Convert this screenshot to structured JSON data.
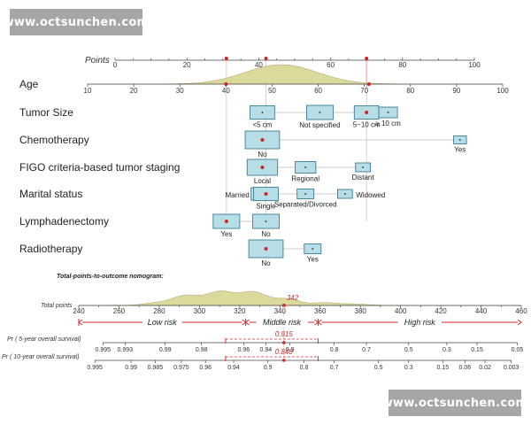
{
  "watermark": "www.octsunchen.com",
  "chart_data": {
    "type": "nomogram",
    "colors": {
      "box_fill": "#b7dde6",
      "box_stroke": "#3b7d96",
      "point": "#d42020",
      "density": "#d8d692",
      "guide": "#e7a3a8",
      "risk": "#cc2a2a",
      "axis": "#444444"
    },
    "points_axis": {
      "label": "Points",
      "min": 0,
      "max": 100,
      "ticks": [
        0,
        20,
        40,
        60,
        80,
        100
      ],
      "markers": [
        31,
        42,
        70
      ]
    },
    "age_axis": {
      "min": 10,
      "max": 100,
      "ticks": [
        10,
        20,
        30,
        40,
        50,
        60,
        70,
        80,
        90,
        100
      ],
      "density_peak": 52,
      "markers": [
        40,
        71
      ]
    },
    "variables": [
      {
        "label": "Age",
        "kind": "axis"
      },
      {
        "label": "Tumor Size",
        "kind": "boxes",
        "levels": [
          {
            "label": "<5 cm",
            "points": 41,
            "size": 0.9
          },
          {
            "label": "Not specified",
            "points": 57,
            "size": 1.0
          },
          {
            "label": "5~10 cm",
            "points": 70,
            "size": 0.9,
            "selected": true
          },
          {
            "label": "≥ 10 cm",
            "points": 76,
            "size": 0.6
          }
        ]
      },
      {
        "label": "Chemotherapy",
        "kind": "boxes",
        "levels": [
          {
            "label": "No",
            "points": 41,
            "size": 1.4,
            "selected": true
          },
          {
            "label": "Yes",
            "points": 96,
            "size": 0.3
          }
        ]
      },
      {
        "label": "FIGO criteria-based tumor staging",
        "kind": "boxes",
        "levels": [
          {
            "label": "Local",
            "points": 41,
            "size": 1.2,
            "selected": true
          },
          {
            "label": "Regional",
            "points": 53,
            "size": 0.7
          },
          {
            "label": "Distant",
            "points": 69,
            "size": 0.4
          }
        ]
      },
      {
        "label": "Marital status",
        "kind": "boxes",
        "levels": [
          {
            "label": "Married",
            "points": 41,
            "size": 0.8
          },
          {
            "label": "Single",
            "points": 42,
            "size": 0.9,
            "selected": true
          },
          {
            "label": "Separated/Divorced",
            "points": 53,
            "size": 0.5
          },
          {
            "label": "Widowed",
            "points": 64,
            "size": 0.4
          }
        ]
      },
      {
        "label": "Lymphadenectomy",
        "kind": "boxes",
        "levels": [
          {
            "label": "Yes",
            "points": 31,
            "size": 1.0,
            "selected": true
          },
          {
            "label": "No",
            "points": 42,
            "size": 1.0
          }
        ]
      },
      {
        "label": "Radiotherapy",
        "kind": "boxes",
        "levels": [
          {
            "label": "No",
            "points": 42,
            "size": 1.4,
            "selected": true
          },
          {
            "label": "Yes",
            "points": 55,
            "size": 0.5
          }
        ]
      }
    ],
    "total_title": "Total-points-to-outcome nomogram:",
    "total_axis": {
      "label": "Total points",
      "min": 240,
      "max": 460,
      "ticks": [
        240,
        260,
        280,
        300,
        320,
        340,
        360,
        380,
        400,
        420,
        440,
        460
      ],
      "selected": 342,
      "selected_label": "342"
    },
    "risk_groups": [
      {
        "label": "Low risk",
        "from": 240,
        "to": 323
      },
      {
        "label": "Middle risk",
        "from": 323,
        "to": 359
      },
      {
        "label": "High risk",
        "from": 359,
        "to": 460
      }
    ],
    "survival_scales": [
      {
        "label": "Pr ( 5-year overall survival)",
        "value_label": "0.915",
        "ticks": [
          {
            "label": "0.995",
            "at": 252
          },
          {
            "label": "0.993",
            "at": 263
          },
          {
            "label": "0.99",
            "at": 283
          },
          {
            "label": "0.98",
            "at": 301
          },
          {
            "label": "0.96",
            "at": 322
          },
          {
            "label": "0.94",
            "at": 333
          },
          {
            "label": "0.9",
            "at": 345
          },
          {
            "label": "0.8",
            "at": 367
          },
          {
            "label": "0.7",
            "at": 383
          },
          {
            "label": "0.5",
            "at": 404
          },
          {
            "label": "0.3",
            "at": 423
          },
          {
            "label": "0.15",
            "at": 438
          },
          {
            "label": "0.05",
            "at": 458
          }
        ]
      },
      {
        "label": "Pr ( 10-year overall survival)",
        "value_label": "0.848",
        "ticks": [
          {
            "label": "0.995",
            "at": 248
          },
          {
            "label": "0.99",
            "at": 266
          },
          {
            "label": "0.985",
            "at": 278
          },
          {
            "label": "0.975",
            "at": 291
          },
          {
            "label": "0.96",
            "at": 303
          },
          {
            "label": "0.94",
            "at": 317
          },
          {
            "label": "0.9",
            "at": 334
          },
          {
            "label": "0.8",
            "at": 352
          },
          {
            "label": "0.7",
            "at": 367
          },
          {
            "label": "0.5",
            "at": 389
          },
          {
            "label": "0.3",
            "at": 404
          },
          {
            "label": "0.15",
            "at": 421
          },
          {
            "label": "0.06",
            "at": 432
          },
          {
            "label": "0.02",
            "at": 442
          },
          {
            "label": "0.003",
            "at": 455
          }
        ]
      }
    ]
  }
}
